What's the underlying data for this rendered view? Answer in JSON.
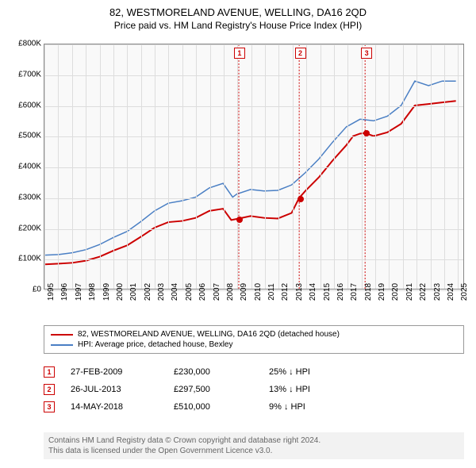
{
  "title": "82, WESTMORELAND AVENUE, WELLING, DA16 2QD",
  "subtitle": "Price paid vs. HM Land Registry's House Price Index (HPI)",
  "chart": {
    "type": "line",
    "background_color": "#f9f9f9",
    "grid_color": "#dddddd",
    "border_color": "#888888",
    "xlim": [
      1995,
      2025.5
    ],
    "ylim": [
      0,
      800000
    ],
    "ytick_step": 100000,
    "y_ticks": [
      "£0",
      "£100K",
      "£200K",
      "£300K",
      "£400K",
      "£500K",
      "£600K",
      "£700K",
      "£800K"
    ],
    "x_ticks": [
      "1995",
      "1996",
      "1997",
      "1998",
      "1999",
      "2000",
      "2001",
      "2002",
      "2003",
      "2004",
      "2005",
      "2006",
      "2007",
      "2008",
      "2009",
      "2010",
      "2011",
      "2012",
      "2013",
      "2014",
      "2015",
      "2016",
      "2017",
      "2018",
      "2019",
      "2020",
      "2021",
      "2022",
      "2023",
      "2024",
      "2025"
    ],
    "series": [
      {
        "name": "property",
        "label": "82, WESTMORELAND AVENUE, WELLING, DA16 2QD (detached house)",
        "color": "#cc0000",
        "line_width": 2,
        "data": [
          [
            1995,
            80000
          ],
          [
            1996,
            82000
          ],
          [
            1997,
            85000
          ],
          [
            1998,
            92000
          ],
          [
            1999,
            105000
          ],
          [
            2000,
            125000
          ],
          [
            2001,
            142000
          ],
          [
            2002,
            170000
          ],
          [
            2003,
            200000
          ],
          [
            2004,
            218000
          ],
          [
            2005,
            222000
          ],
          [
            2006,
            232000
          ],
          [
            2007,
            255000
          ],
          [
            2008,
            262000
          ],
          [
            2008.6,
            225000
          ],
          [
            2009.15,
            230000
          ],
          [
            2010,
            238000
          ],
          [
            2011,
            232000
          ],
          [
            2012,
            230000
          ],
          [
            2013,
            248000
          ],
          [
            2013.56,
            297500
          ],
          [
            2014,
            320000
          ],
          [
            2015,
            365000
          ],
          [
            2016,
            420000
          ],
          [
            2017,
            470000
          ],
          [
            2017.5,
            500000
          ],
          [
            2018,
            508000
          ],
          [
            2018.37,
            510000
          ],
          [
            2019,
            500000
          ],
          [
            2020,
            512000
          ],
          [
            2021,
            540000
          ],
          [
            2022,
            600000
          ],
          [
            2023,
            605000
          ],
          [
            2024,
            610000
          ],
          [
            2025,
            615000
          ]
        ]
      },
      {
        "name": "hpi",
        "label": "HPI: Average price, detached house, Bexley",
        "color": "#4a7fc4",
        "line_width": 1.5,
        "data": [
          [
            1995,
            110000
          ],
          [
            1996,
            112000
          ],
          [
            1997,
            118000
          ],
          [
            1998,
            128000
          ],
          [
            1999,
            145000
          ],
          [
            2000,
            168000
          ],
          [
            2001,
            188000
          ],
          [
            2002,
            220000
          ],
          [
            2003,
            255000
          ],
          [
            2004,
            280000
          ],
          [
            2005,
            288000
          ],
          [
            2006,
            300000
          ],
          [
            2007,
            330000
          ],
          [
            2008,
            345000
          ],
          [
            2008.7,
            300000
          ],
          [
            2009,
            310000
          ],
          [
            2010,
            325000
          ],
          [
            2011,
            320000
          ],
          [
            2012,
            322000
          ],
          [
            2013,
            340000
          ],
          [
            2014,
            380000
          ],
          [
            2015,
            425000
          ],
          [
            2016,
            480000
          ],
          [
            2017,
            530000
          ],
          [
            2018,
            555000
          ],
          [
            2019,
            550000
          ],
          [
            2020,
            565000
          ],
          [
            2021,
            600000
          ],
          [
            2022,
            680000
          ],
          [
            2023,
            665000
          ],
          [
            2024,
            680000
          ],
          [
            2025,
            680000
          ]
        ]
      }
    ],
    "markers": [
      {
        "n": "1",
        "x": 2009.15,
        "y": 230000,
        "color": "#cc0000"
      },
      {
        "n": "2",
        "x": 2013.56,
        "y": 297500,
        "color": "#cc0000"
      },
      {
        "n": "3",
        "x": 2018.37,
        "y": 510000,
        "color": "#cc0000"
      }
    ]
  },
  "sales": [
    {
      "n": "1",
      "date": "27-FEB-2009",
      "price": "£230,000",
      "diff": "25% ↓ HPI",
      "color": "#cc0000"
    },
    {
      "n": "2",
      "date": "26-JUL-2013",
      "price": "£297,500",
      "diff": "13% ↓ HPI",
      "color": "#cc0000"
    },
    {
      "n": "3",
      "date": "14-MAY-2018",
      "price": "£510,000",
      "diff": "9% ↓ HPI",
      "color": "#cc0000"
    }
  ],
  "footer_line1": "Contains HM Land Registry data © Crown copyright and database right 2024.",
  "footer_line2": "This data is licensed under the Open Government Licence v3.0."
}
